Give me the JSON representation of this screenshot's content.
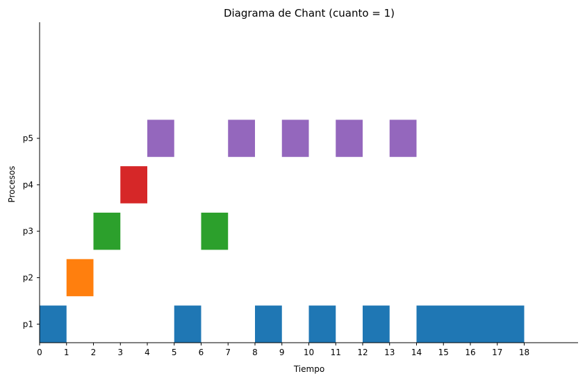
{
  "chart_data": {
    "type": "gantt",
    "title": "Diagrama de Chant (cuanto = 1)",
    "xlabel": "Tiempo",
    "ylabel": "Procesos",
    "xlim": [
      0,
      20
    ],
    "xticks": [
      0,
      1,
      2,
      3,
      4,
      5,
      6,
      7,
      8,
      9,
      10,
      11,
      12,
      13,
      14,
      15,
      16,
      17,
      18
    ],
    "categories": [
      "p1",
      "p2",
      "p3",
      "p4",
      "p5"
    ],
    "ylim": [
      -0.4,
      6.5
    ],
    "grid": false,
    "series": [
      {
        "name": "p1",
        "color": "#1f77b4",
        "segments": [
          [
            0,
            1
          ],
          [
            5,
            6
          ],
          [
            8,
            9
          ],
          [
            10,
            11
          ],
          [
            12,
            13
          ],
          [
            14,
            18
          ]
        ]
      },
      {
        "name": "p2",
        "color": "#ff7f0e",
        "segments": [
          [
            1,
            2
          ]
        ]
      },
      {
        "name": "p3",
        "color": "#2ca02c",
        "segments": [
          [
            2,
            3
          ],
          [
            6,
            7
          ]
        ]
      },
      {
        "name": "p4",
        "color": "#d62728",
        "segments": [
          [
            3,
            4
          ]
        ]
      },
      {
        "name": "p5",
        "color": "#9467bd",
        "segments": [
          [
            4,
            5
          ],
          [
            7,
            8
          ],
          [
            9,
            10
          ],
          [
            11,
            12
          ],
          [
            13,
            14
          ]
        ]
      }
    ]
  }
}
